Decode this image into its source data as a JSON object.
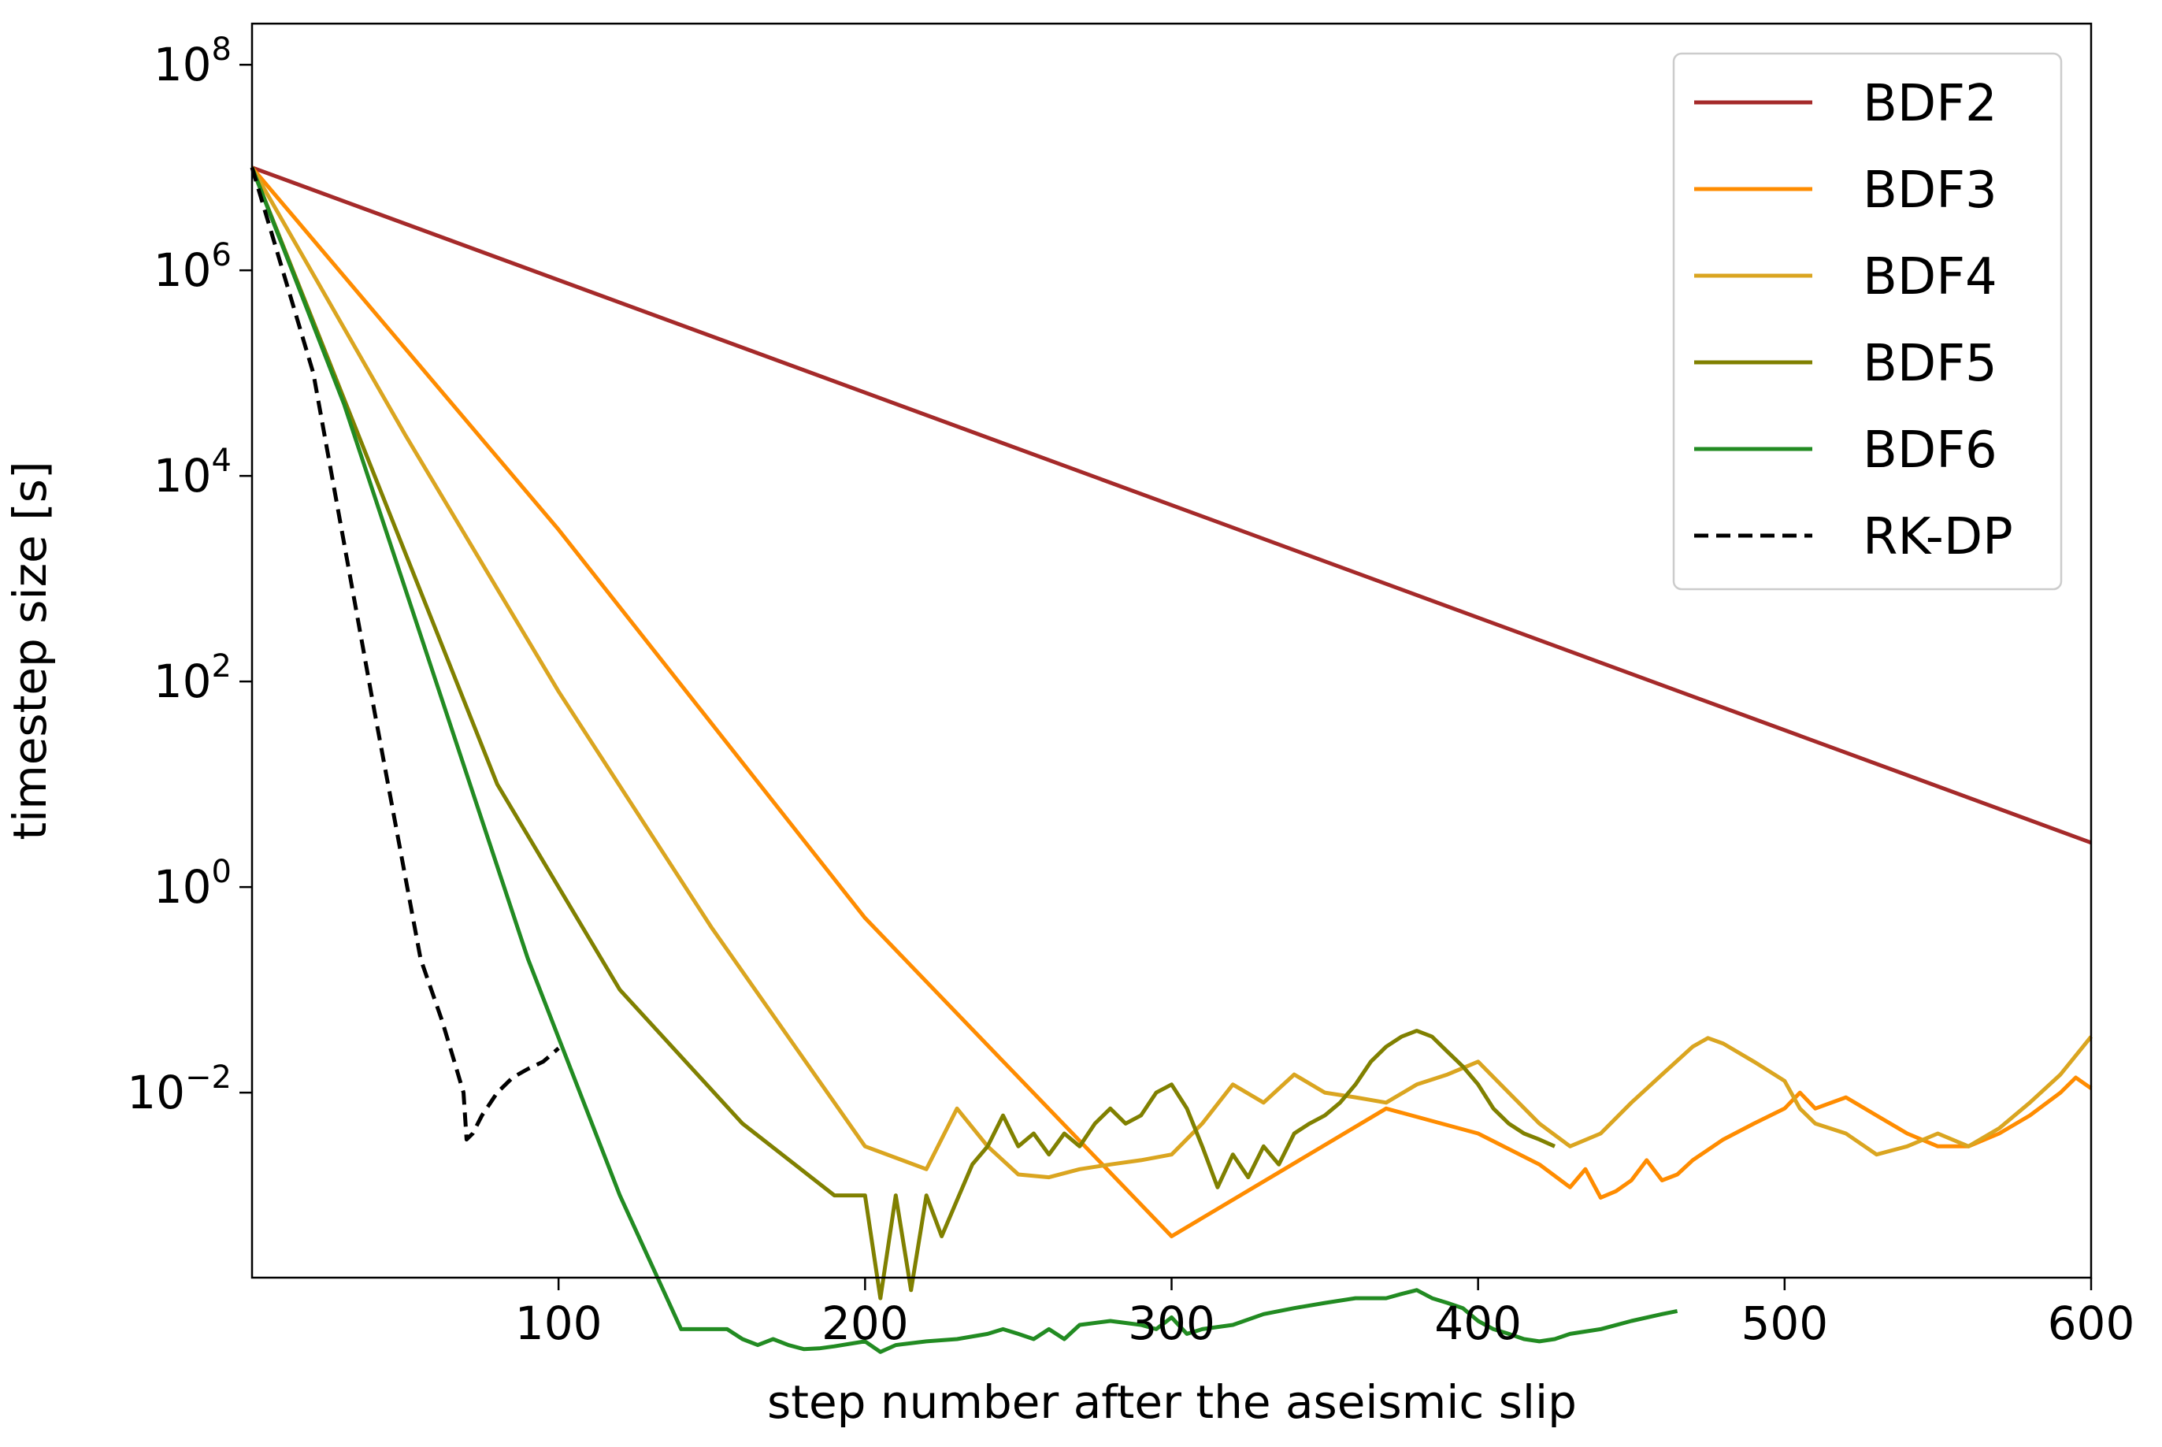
{
  "chart_data": {
    "type": "line",
    "title": "",
    "xlabel": "step number after the aseismic slip",
    "ylabel": "timestep size [s]",
    "xlim": [
      0,
      600
    ],
    "ylim_log10": [
      -3.8,
      8.4
    ],
    "yscale": "log",
    "grid": false,
    "legend_position": "top-right",
    "x_ticks": [
      100,
      200,
      300,
      400,
      500,
      600
    ],
    "x_tick_labels": [
      "100",
      "200",
      "300",
      "400",
      "500",
      "600"
    ],
    "y_ticks_log10": [
      -2,
      0,
      2,
      4,
      6,
      8
    ],
    "y_tick_labels": [
      {
        "base": "10",
        "exp": "−2"
      },
      {
        "base": "10",
        "exp": "0"
      },
      {
        "base": "10",
        "exp": "2"
      },
      {
        "base": "10",
        "exp": "4"
      },
      {
        "base": "10",
        "exp": "6"
      },
      {
        "base": "10",
        "exp": "8"
      }
    ],
    "series": [
      {
        "name": "BDF2",
        "color": "#a52a2a",
        "dash": false,
        "x": [
          0,
          600
        ],
        "y": [
          10000000,
          2.7
        ]
      },
      {
        "name": "BDF3",
        "color": "#ff8c00",
        "dash": false,
        "x": [
          0,
          100,
          200,
          300,
          370,
          400,
          420,
          430,
          435,
          440,
          445,
          450,
          455,
          460,
          465,
          470,
          480,
          490,
          500,
          505,
          510,
          520,
          530,
          540,
          550,
          560,
          570,
          580,
          590,
          595,
          600
        ],
        "y": [
          10000000,
          3000,
          0.5,
          0.0004,
          0.007,
          0.004,
          0.002,
          0.0012,
          0.0018,
          0.00095,
          0.0011,
          0.0014,
          0.0022,
          0.0014,
          0.0016,
          0.0022,
          0.0035,
          0.005,
          0.007,
          0.01,
          0.007,
          0.009,
          0.006,
          0.004,
          0.003,
          0.003,
          0.004,
          0.006,
          0.01,
          0.014,
          0.011
        ]
      },
      {
        "name": "BDF4",
        "color": "#daa520",
        "dash": false,
        "x": [
          0,
          50,
          100,
          150,
          200,
          220,
          230,
          240,
          250,
          260,
          270,
          280,
          290,
          300,
          310,
          320,
          330,
          340,
          350,
          360,
          370,
          380,
          390,
          400,
          410,
          420,
          430,
          440,
          450,
          460,
          470,
          475,
          480,
          490,
          500,
          505,
          510,
          520,
          530,
          540,
          550,
          560,
          570,
          580,
          590,
          600
        ],
        "y": [
          10000000,
          25000,
          80,
          0.4,
          0.003,
          0.0018,
          0.007,
          0.003,
          0.0016,
          0.0015,
          0.0018,
          0.002,
          0.0022,
          0.0025,
          0.005,
          0.012,
          0.008,
          0.015,
          0.01,
          0.009,
          0.008,
          0.012,
          0.015,
          0.02,
          0.01,
          0.005,
          0.003,
          0.004,
          0.008,
          0.015,
          0.028,
          0.034,
          0.03,
          0.02,
          0.013,
          0.007,
          0.005,
          0.004,
          0.0025,
          0.003,
          0.004,
          0.003,
          0.0045,
          0.008,
          0.015,
          0.035
        ]
      },
      {
        "name": "BDF5",
        "color": "#808000",
        "dash": false,
        "x": [
          0,
          40,
          80,
          120,
          160,
          190,
          200,
          205,
          210,
          215,
          220,
          225,
          230,
          235,
          240,
          245,
          250,
          255,
          260,
          265,
          270,
          275,
          280,
          285,
          290,
          295,
          300,
          305,
          310,
          315,
          320,
          325,
          330,
          335,
          340,
          345,
          350,
          355,
          360,
          365,
          370,
          375,
          380,
          385,
          390,
          395,
          400,
          405,
          410,
          415,
          420,
          425
        ],
        "y": [
          10000000,
          10000,
          10,
          0.1,
          0.005,
          0.001,
          0.001,
          0.0001,
          0.001,
          0.00012,
          0.001,
          0.0004,
          0.0009,
          0.002,
          0.003,
          0.006,
          0.003,
          0.004,
          0.0025,
          0.004,
          0.003,
          0.005,
          0.007,
          0.005,
          0.006,
          0.01,
          0.012,
          0.007,
          0.003,
          0.0012,
          0.0025,
          0.0015,
          0.003,
          0.002,
          0.004,
          0.005,
          0.006,
          0.008,
          0.012,
          0.02,
          0.028,
          0.035,
          0.04,
          0.035,
          0.025,
          0.018,
          0.012,
          0.007,
          0.005,
          0.004,
          0.0035,
          0.003
        ]
      },
      {
        "name": "BDF6",
        "color": "#228b22",
        "dash": false,
        "x": [
          0,
          30,
          60,
          90,
          120,
          140,
          155,
          160,
          165,
          170,
          175,
          180,
          185,
          190,
          200,
          205,
          210,
          220,
          230,
          240,
          245,
          250,
          255,
          260,
          265,
          270,
          280,
          290,
          295,
          300,
          305,
          310,
          320,
          330,
          340,
          350,
          360,
          370,
          375,
          380,
          385,
          390,
          395,
          400,
          405,
          410,
          415,
          420,
          425,
          430,
          440,
          450,
          460,
          465
        ],
        "y": [
          10000000,
          50000,
          100,
          0.2,
          0.001,
          5e-05,
          5e-05,
          4e-05,
          3.5e-05,
          4e-05,
          3.5e-05,
          3.2e-05,
          3.25e-05,
          3.4e-05,
          3.8e-05,
          3e-05,
          3.5e-05,
          3.8e-05,
          4e-05,
          4.5e-05,
          5e-05,
          4.5e-05,
          4e-05,
          5e-05,
          4e-05,
          5.5e-05,
          6e-05,
          5.5e-05,
          5e-05,
          6.5e-05,
          4.5e-05,
          5e-05,
          5.5e-05,
          7e-05,
          8e-05,
          9e-05,
          0.0001,
          0.0001,
          0.00011,
          0.00012,
          0.0001,
          9e-05,
          8e-05,
          6e-05,
          5e-05,
          4.5e-05,
          4e-05,
          3.8e-05,
          4e-05,
          4.5e-05,
          5e-05,
          6e-05,
          7e-05,
          7.5e-05
        ]
      },
      {
        "name": "RK-DP",
        "color": "#000000",
        "dash": true,
        "x": [
          0,
          20,
          40,
          55,
          62,
          66,
          69,
          70,
          72,
          75,
          80,
          85,
          90,
          95,
          100
        ],
        "y": [
          10000000,
          100000,
          50,
          0.2,
          0.05,
          0.02,
          0.01,
          0.0035,
          0.004,
          0.006,
          0.01,
          0.014,
          0.017,
          0.02,
          0.027
        ]
      }
    ]
  }
}
